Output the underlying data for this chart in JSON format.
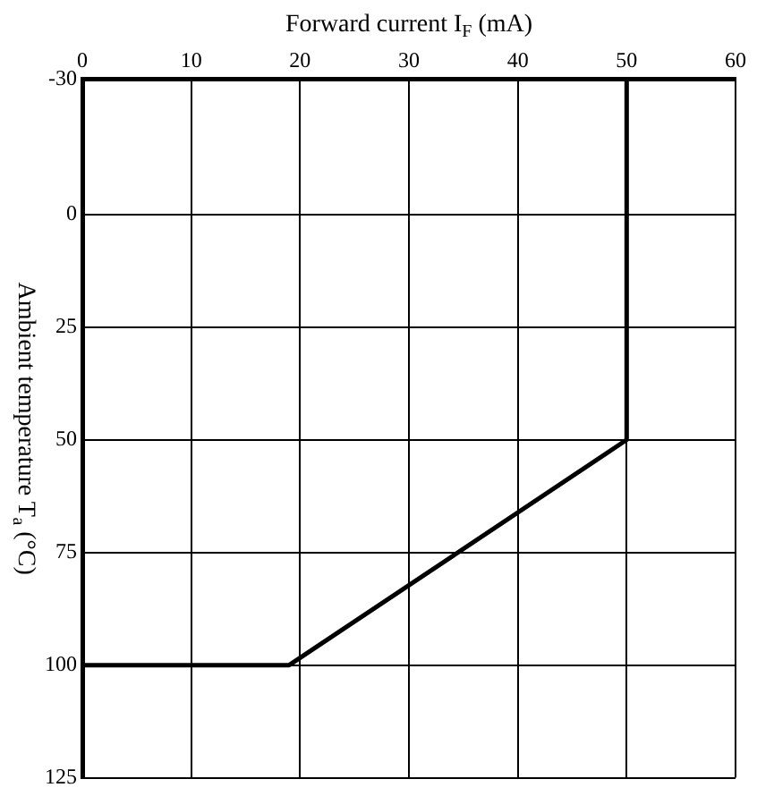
{
  "chart_data": {
    "type": "line",
    "xlabel": "Forward current I$_{F}$ (mA)",
    "ylabel": "Ambient temperature T$_{a}$ (°C)",
    "x": [
      0,
      19,
      50,
      50
    ],
    "series": [
      {
        "color": "#000000",
        "values": [
          100,
          100,
          50,
          -30
        ]
      }
    ],
    "xlim": [
      0,
      60
    ],
    "xticks": [
      0,
      10,
      20,
      30,
      40,
      50,
      60
    ],
    "ylim": [
      125,
      -30
    ],
    "yticks": [
      -30,
      0,
      25,
      50,
      75,
      100,
      125
    ],
    "grid": true,
    "legend": false,
    "marker": "none",
    "line_style": "solid"
  }
}
